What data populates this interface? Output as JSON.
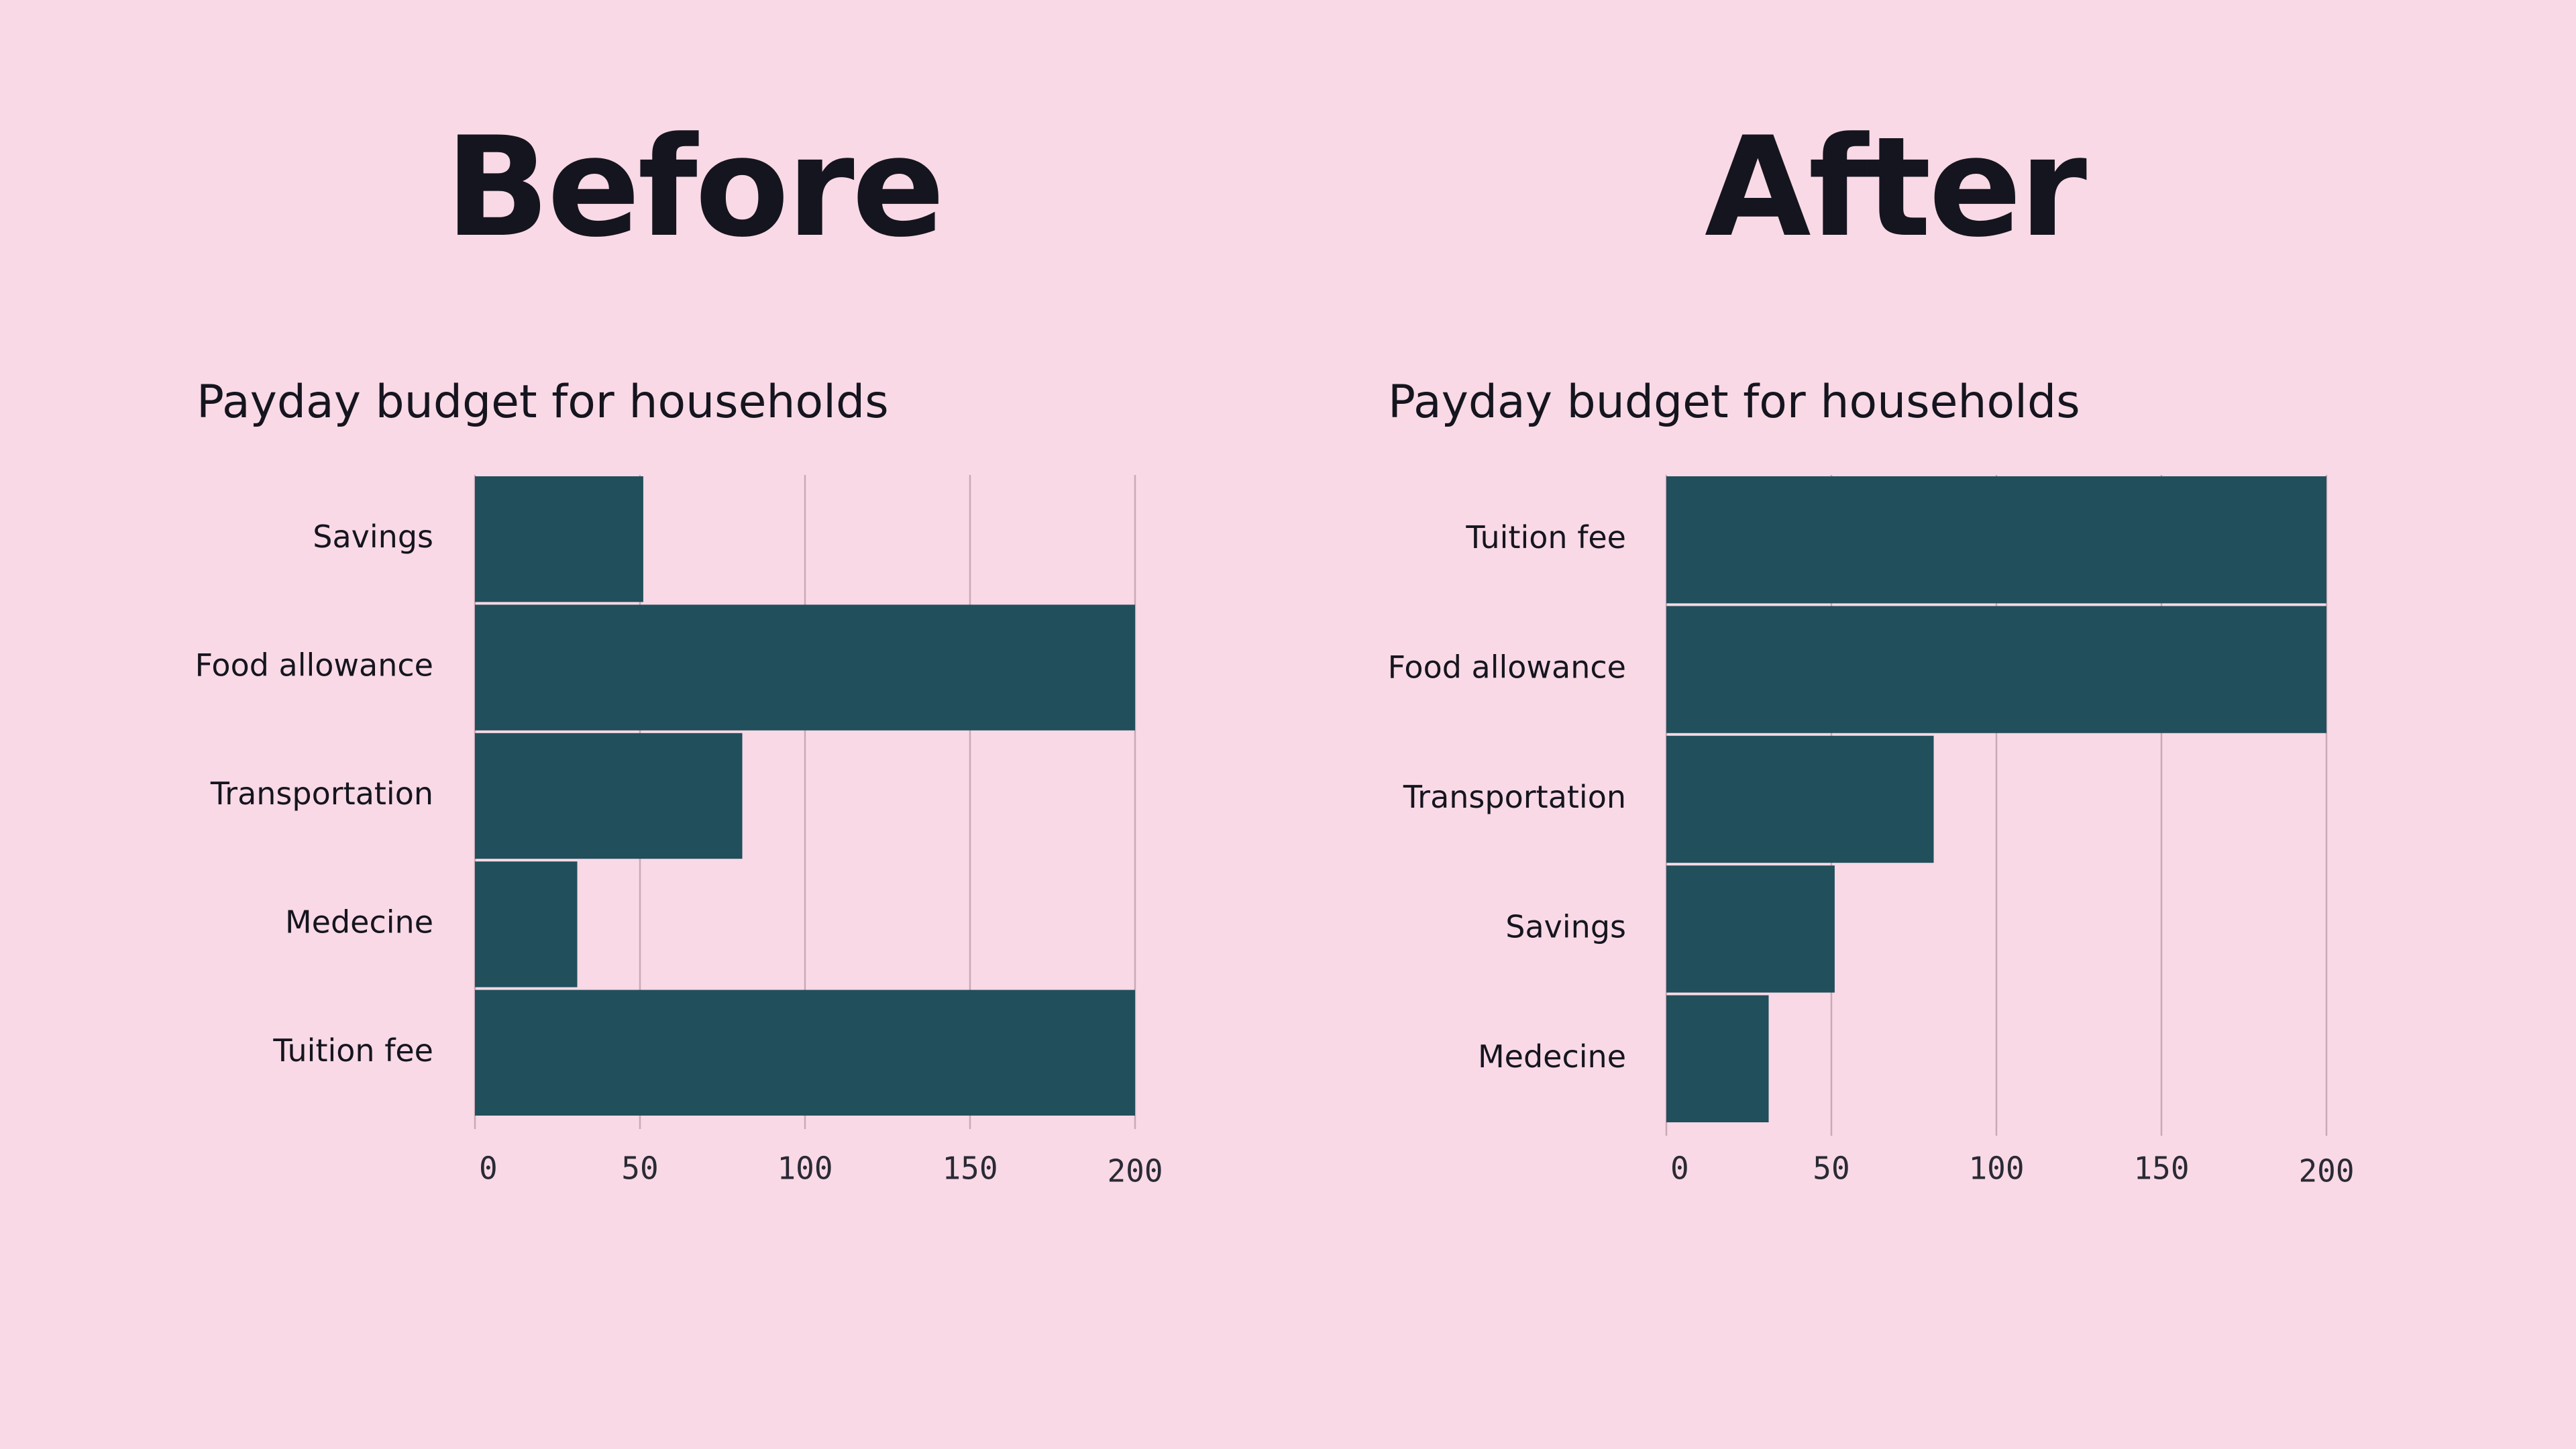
{
  "headings": {
    "before": "Before",
    "after": "After"
  },
  "colors": {
    "background": "#f8d9e5",
    "bar": "#224f5c",
    "grid": "#c9a9b6",
    "text": "#15151f"
  },
  "chart_data": [
    {
      "type": "bar",
      "orientation": "horizontal",
      "title": "Payday budget for households",
      "categories": [
        "Savings",
        "Food allowance",
        "Transportation",
        "Medecine",
        "Tuition fee"
      ],
      "values": [
        51,
        200,
        81,
        31,
        200
      ],
      "xlim": [
        0,
        200
      ],
      "xticks": [
        0,
        50,
        100,
        150,
        200
      ],
      "grid": true
    },
    {
      "type": "bar",
      "orientation": "horizontal",
      "title": "Payday budget for households",
      "categories": [
        "Tuition fee",
        "Food allowance",
        "Transportation",
        "Savings",
        "Medecine"
      ],
      "values": [
        200,
        200,
        81,
        51,
        31
      ],
      "xlim": [
        0,
        200
      ],
      "xticks": [
        0,
        50,
        100,
        150,
        200
      ],
      "grid": true
    }
  ]
}
